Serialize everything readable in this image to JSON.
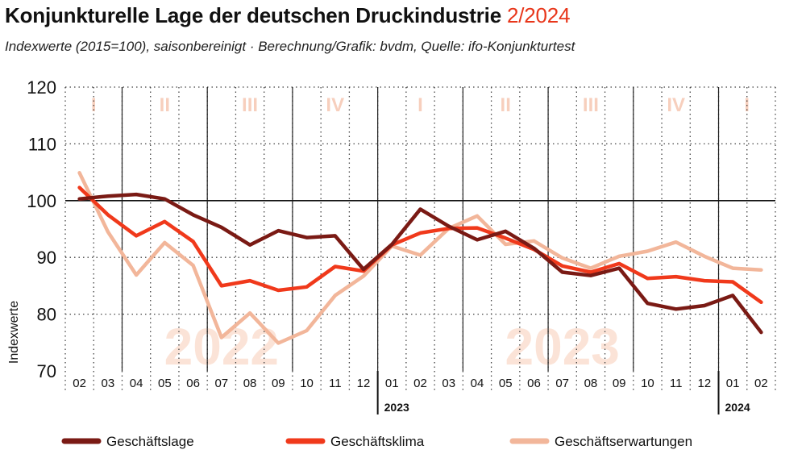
{
  "header": {
    "title": "Konjunkturelle Lage der deutschen Druckindustrie",
    "title_accent": "2/2024",
    "subtitle": "Indexwerte (2015=100), saisonbereinigt  ·  Berechnung/Grafik: bvdm, Quelle: ifo-Konjunkturtest"
  },
  "chart_data": {
    "type": "line",
    "ylabel": "Indexwerte",
    "ylim": [
      70,
      120
    ],
    "yticks": [
      70,
      80,
      90,
      100,
      110,
      120
    ],
    "reference_line": 100,
    "grid": "dotted",
    "categories": [
      "02",
      "03",
      "04",
      "05",
      "06",
      "07",
      "08",
      "09",
      "10",
      "11",
      "12",
      "01",
      "02",
      "03",
      "04",
      "05",
      "06",
      "07",
      "08",
      "09",
      "10",
      "11",
      "12",
      "01",
      "02"
    ],
    "year_labels": [
      {
        "label": "2023",
        "at_index": 11
      },
      {
        "label": "2024",
        "at_index": 23
      }
    ],
    "watermark_years": [
      {
        "label": "2022",
        "center_index": 5
      },
      {
        "label": "2023",
        "center_index": 17
      }
    ],
    "quarters": [
      {
        "label": "I",
        "start": 0,
        "end": 1
      },
      {
        "label": "II",
        "start": 2,
        "end": 4
      },
      {
        "label": "III",
        "start": 5,
        "end": 7
      },
      {
        "label": "IV",
        "start": 8,
        "end": 10
      },
      {
        "label": "I",
        "start": 11,
        "end": 13
      },
      {
        "label": "II",
        "start": 14,
        "end": 16
      },
      {
        "label": "III",
        "start": 17,
        "end": 19
      },
      {
        "label": "IV",
        "start": 20,
        "end": 22
      },
      {
        "label": "I",
        "start": 23,
        "end": 24
      }
    ],
    "series": [
      {
        "name": "Geschäftslage",
        "color": "#7a1a14",
        "values": [
          100.3,
          100.8,
          101.1,
          100.3,
          97.5,
          95.3,
          92.2,
          94.7,
          93.5,
          93.8,
          87.9,
          92.3,
          98.5,
          95.5,
          93.1,
          94.6,
          91.6,
          87.4,
          86.8,
          88.1,
          81.9,
          80.9,
          81.5,
          83.3,
          76.8
        ]
      },
      {
        "name": "Geschäftsklima",
        "color": "#f0391b",
        "values": [
          102.3,
          97.5,
          93.8,
          96.3,
          92.8,
          85.0,
          85.9,
          84.2,
          84.8,
          88.4,
          87.6,
          92.2,
          94.3,
          95.1,
          95.2,
          93.4,
          91.4,
          88.5,
          87.4,
          88.9,
          86.3,
          86.6,
          85.9,
          85.7,
          82.1
        ]
      },
      {
        "name": "Geschäftserwartungen",
        "color": "#f2b69a",
        "values": [
          104.9,
          94.5,
          86.9,
          92.6,
          88.6,
          75.9,
          80.2,
          74.9,
          77.1,
          83.3,
          86.7,
          92.0,
          90.4,
          95.1,
          97.3,
          92.3,
          92.9,
          89.9,
          88.1,
          90.2,
          91.1,
          92.7,
          90.2,
          88.1,
          87.8
        ]
      }
    ]
  },
  "legend": [
    {
      "label": "Geschäftslage",
      "color": "#7a1a14"
    },
    {
      "label": "Geschäftsklima",
      "color": "#f0391b"
    },
    {
      "label": "Geschäftserwartungen",
      "color": "#f2b69a"
    }
  ]
}
